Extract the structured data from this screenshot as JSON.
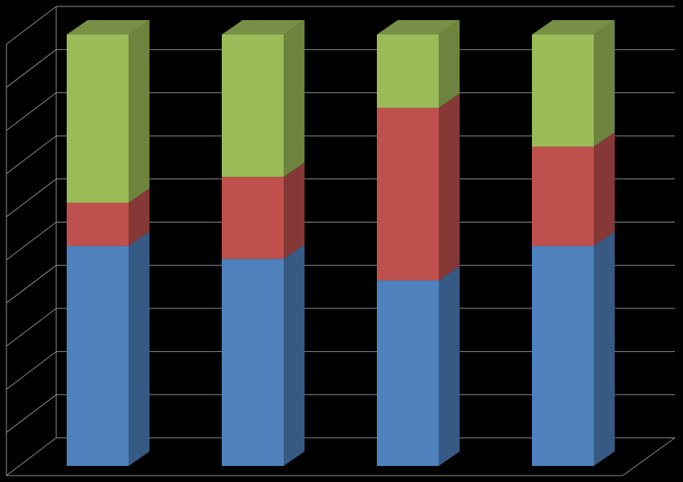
{
  "chart_data": {
    "type": "bar3d_stacked",
    "categories": [
      null,
      null,
      null,
      null
    ],
    "series": [
      {
        "color": "#4f81bd",
        "values": [
          51,
          48,
          43,
          51
        ]
      },
      {
        "color": "#c0504d",
        "values": [
          10,
          19,
          40,
          23
        ]
      },
      {
        "color": "#9bbb59",
        "values": [
          39,
          33,
          17,
          26
        ]
      }
    ],
    "ylim": [
      0,
      100
    ],
    "yticks": [
      0,
      10,
      20,
      30,
      40,
      50,
      60,
      70,
      80,
      90,
      100
    ],
    "grid": true
  }
}
